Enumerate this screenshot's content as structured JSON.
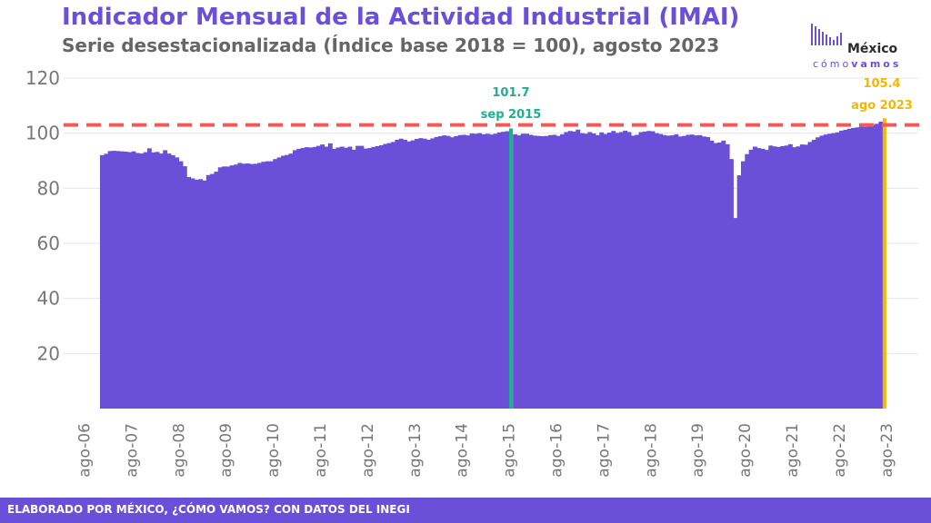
{
  "title": "Indicador Mensual de la Actividad Industrial (IMAI)",
  "subtitle": "Serie desestacionalizada (Índice base 2018 = 100), agosto 2023",
  "logo": {
    "word": "México",
    "sub_light": "cómo",
    "sub_bold": "vamos"
  },
  "footer": "ELABORADO POR MÉXICO, ¿CÓMO VAMOS? CON DATOS DEL INEGI",
  "colors": {
    "bars": "#6a50d8",
    "highlight_sep2015": "#1db08a",
    "highlight_last": "#f5b700",
    "reference_line": "#ef5b5b",
    "title": "#6a50d8"
  },
  "chart_data": {
    "type": "bar",
    "x_start": "ene-07",
    "x_end": "ago-23",
    "ylim": [
      0,
      120
    ],
    "yticks": [
      20,
      40,
      60,
      80,
      100,
      120
    ],
    "grid": true,
    "xticks": [
      "ago-06",
      "ago-07",
      "ago-08",
      "ago-09",
      "ago-10",
      "ago-11",
      "ago-12",
      "ago-13",
      "ago-14",
      "ago-15",
      "ago-16",
      "ago-17",
      "ago-18",
      "ago-19",
      "ago-20",
      "ago-21",
      "ago-22",
      "ago-23"
    ],
    "reference_value": 103.0,
    "annotations": [
      {
        "value_label": "101.7",
        "date_label": "sep 2015",
        "index": 104
      },
      {
        "value_label": "105.4",
        "date_label": "ago 2023",
        "index": 199
      }
    ],
    "values": [
      92.0,
      92.5,
      93.5,
      93.6,
      93.5,
      93.4,
      93.3,
      93.1,
      93.4,
      92.8,
      92.6,
      93.1,
      94.5,
      93.0,
      93.2,
      92.6,
      93.8,
      92.6,
      92.0,
      91.2,
      89.8,
      88.0,
      84.1,
      83.6,
      83.1,
      83.3,
      82.8,
      84.8,
      85.2,
      86.0,
      87.6,
      87.9,
      87.9,
      88.3,
      88.6,
      89.2,
      88.9,
      89.0,
      88.8,
      88.9,
      89.2,
      89.6,
      89.8,
      89.8,
      90.6,
      91.2,
      91.8,
      92.1,
      92.6,
      93.8,
      94.3,
      94.6,
      94.9,
      94.8,
      95.0,
      95.4,
      95.9,
      95.1,
      96.3,
      94.3,
      94.8,
      95.1,
      94.7,
      95.1,
      94.0,
      95.4,
      95.4,
      94.4,
      94.6,
      95.0,
      95.3,
      95.6,
      96.1,
      96.4,
      96.8,
      97.6,
      98.0,
      97.6,
      97.0,
      97.4,
      97.9,
      98.2,
      98.0,
      97.6,
      98.1,
      98.6,
      98.9,
      99.2,
      99.0,
      98.5,
      98.9,
      99.3,
      99.4,
      99.2,
      99.9,
      99.8,
      100.0,
      99.6,
      99.8,
      99.5,
      99.8,
      100.3,
      100.5,
      100.7,
      101.7,
      99.6,
      99.2,
      99.8,
      99.8,
      99.4,
      99.1,
      99.0,
      98.9,
      99.0,
      99.3,
      99.4,
      99.0,
      99.6,
      100.4,
      100.8,
      100.6,
      101.3,
      100.0,
      99.8,
      100.4,
      99.9,
      99.3,
      100.3,
      99.7,
      100.2,
      100.8,
      100.1,
      100.4,
      100.9,
      100.4,
      99.1,
      99.4,
      100.4,
      100.6,
      100.8,
      100.7,
      100.0,
      99.7,
      99.3,
      99.1,
      99.2,
      99.6,
      98.8,
      99.0,
      99.4,
      99.5,
      99.2,
      99.3,
      98.8,
      98.6,
      97.3,
      96.4,
      96.6,
      97.3,
      96.0,
      90.6,
      69.2,
      84.7,
      89.8,
      92.4,
      94.0,
      95.1,
      94.6,
      94.3,
      93.9,
      95.5,
      95.2,
      95.0,
      95.3,
      95.5,
      96.0,
      94.9,
      95.2,
      95.9,
      95.8,
      96.8,
      97.6,
      98.5,
      99.1,
      99.5,
      99.8,
      100.0,
      100.3,
      100.9,
      101.2,
      101.6,
      101.9,
      102.1,
      102.4,
      102.3,
      102.7,
      103.0,
      103.4,
      104.2,
      105.4
    ]
  }
}
